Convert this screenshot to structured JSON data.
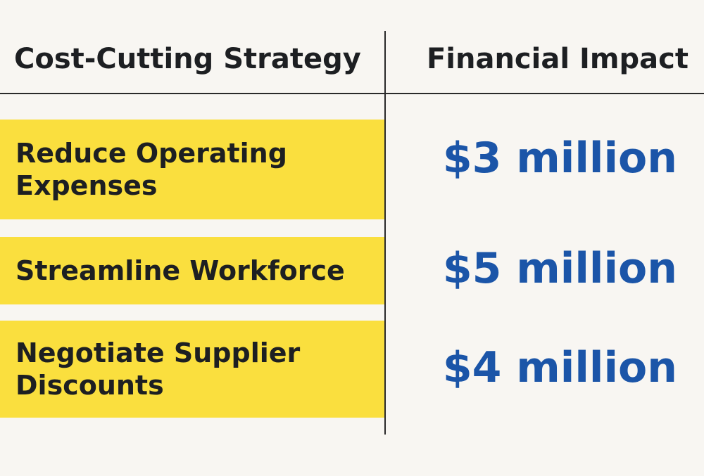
{
  "table": {
    "headers": {
      "strategy": "Cost-Cutting Strategy",
      "impact": "Financial Impact"
    },
    "rows": [
      {
        "strategy": "Reduce Operating Expenses",
        "impact": "$3 million"
      },
      {
        "strategy": "Streamline Workforce",
        "impact": "$5 million"
      },
      {
        "strategy": "Negotiate Supplier Discounts",
        "impact": "$4 million"
      }
    ]
  },
  "colors": {
    "background": "#f8f6f2",
    "highlight": "#fadf3e",
    "value_text": "#1b55a8",
    "text": "#1d1f22"
  }
}
